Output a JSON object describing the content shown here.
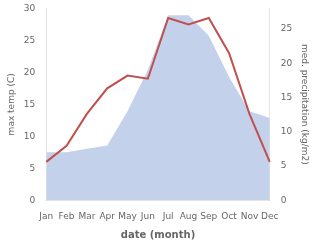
{
  "chart_data": {
    "type": "line",
    "categories": [
      "Jan",
      "Feb",
      "Mar",
      "Apr",
      "May",
      "Jun",
      "Jul",
      "Aug",
      "Sep",
      "Oct",
      "Nov",
      "Dec"
    ],
    "series": [
      {
        "type": "area",
        "axis": "y2",
        "color": "#b8c9e8",
        "values": [
          7.0,
          7.0,
          7.5,
          8.0,
          13.0,
          19.0,
          27.0,
          27.0,
          24.0,
          18.0,
          13.0,
          12.0
        ]
      },
      {
        "type": "line",
        "color": "#c0504d",
        "values": [
          6.0,
          8.5,
          13.5,
          17.5,
          19.5,
          19.0,
          28.5,
          27.5,
          28.5,
          23.0,
          13.5,
          6.0
        ]
      }
    ],
    "xlabel": "date (month)",
    "ylabel": "max temp (C)",
    "y2label": "med. precipitation (kg/m2)",
    "ylim": [
      0,
      30
    ],
    "yticks": [
      0,
      5,
      10,
      15,
      20,
      25,
      30
    ],
    "y2lim": [
      0,
      28
    ],
    "y2ticks": [
      0,
      5,
      10,
      15,
      20,
      25
    ],
    "grid": false
  }
}
